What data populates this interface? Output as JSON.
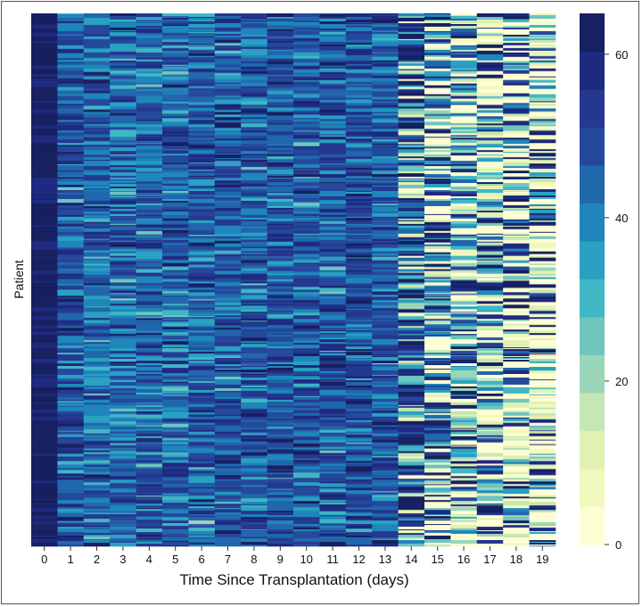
{
  "chart_data": {
    "type": "heatmap",
    "title": "",
    "xlabel": "Time Since Transplantation (days)",
    "ylabel": "Patient",
    "x_categories": [
      "0",
      "1",
      "2",
      "3",
      "4",
      "5",
      "6",
      "7",
      "8",
      "9",
      "10",
      "11",
      "12",
      "13",
      "14",
      "15",
      "16",
      "17",
      "18",
      "19"
    ],
    "column_typical_values": [
      62,
      48,
      44,
      44,
      45,
      46,
      45,
      47,
      47,
      48,
      47,
      48,
      49,
      47,
      38,
      30,
      24,
      20,
      16,
      12
    ],
    "approx_patient_rows": 600,
    "value_range": [
      0,
      65
    ],
    "colorbar": {
      "ticks": [
        0,
        20,
        40,
        60
      ],
      "tick_labels": [
        "0",
        "20",
        "40",
        "60"
      ],
      "levels": 14,
      "colors": [
        "#fdfed4",
        "#f1f8bd",
        "#e0f1b2",
        "#c5e7b4",
        "#9cd6b8",
        "#6fc5be",
        "#41b6c4",
        "#2aa0c3",
        "#1e86bb",
        "#2167ac",
        "#24499c",
        "#243890",
        "#1e2a80",
        "#172060"
      ]
    }
  }
}
